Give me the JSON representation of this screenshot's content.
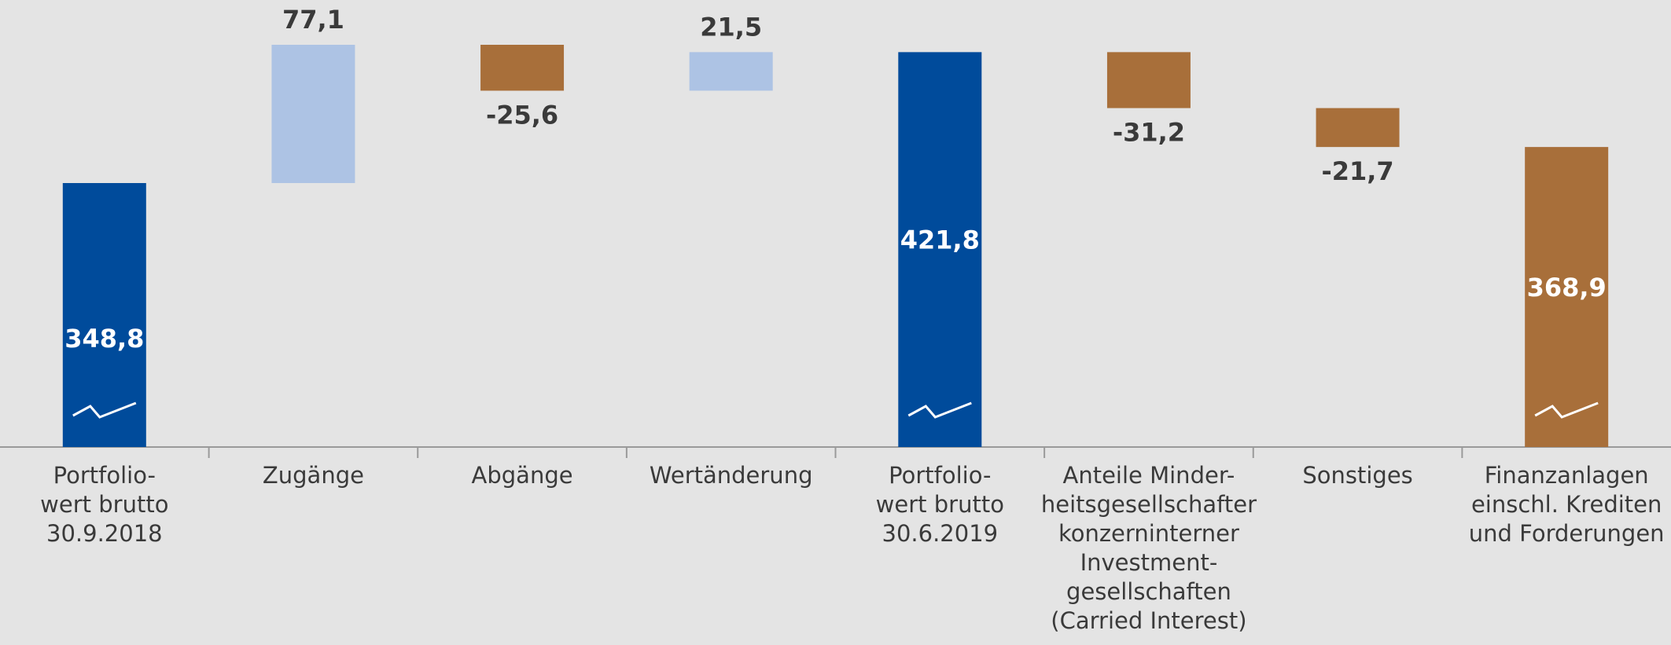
{
  "chart_data": {
    "type": "waterfall",
    "categories": [
      [
        "Portfolio-",
        "wert brutto",
        "30.9.2018"
      ],
      [
        "Zugänge"
      ],
      [
        "Abgänge"
      ],
      [
        "Wertänderung"
      ],
      [
        "Portfolio-",
        "wert brutto",
        "30.6.2019"
      ],
      [
        "Anteile Minder-",
        "heitsgesellschafter",
        "konzerninterner",
        "Investment-",
        "gesellschaften",
        "(Carried Interest)"
      ],
      [
        "Sonstiges"
      ],
      [
        "Finanzanlagen",
        "einschl. Krediten",
        "und Forderungen"
      ]
    ],
    "values": [
      348.8,
      77.1,
      -25.6,
      21.5,
      421.8,
      -31.2,
      -21.7,
      368.9
    ],
    "value_labels": [
      "348,8",
      "77,1",
      "-25,6",
      "21,5",
      "421,8",
      "-31,2",
      "-21,7",
      "368,9"
    ],
    "total_bars": [
      0,
      4,
      7
    ],
    "colors": [
      "#004b9b",
      "#adc3e4",
      "#a86f3a",
      "#adc3e4",
      "#004b9b",
      "#a86f3a",
      "#a86f3a",
      "#a86f3a"
    ]
  }
}
